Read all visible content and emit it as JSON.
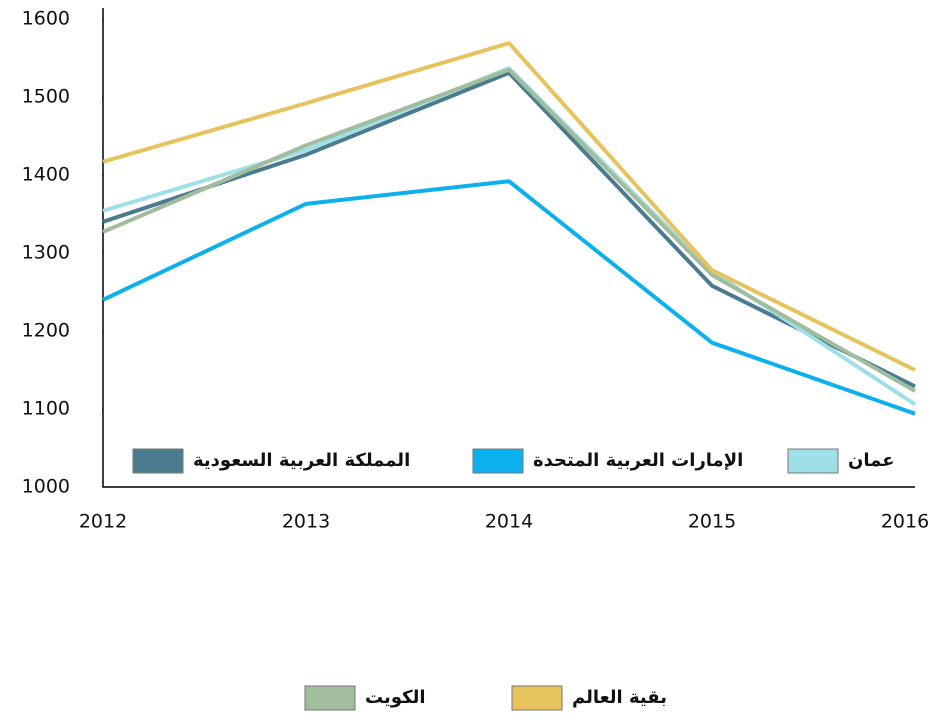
{
  "chart_data": {
    "type": "line",
    "categories": [
      "2012",
      "2013",
      "2014",
      "2015",
      "2016"
    ],
    "ylim": [
      1000,
      1600
    ],
    "yticks": [
      1000,
      1100,
      1200,
      1300,
      1400,
      1500,
      1600
    ],
    "series": [
      {
        "name": "المملكة العربية السعودية",
        "color": "#4a7b8f",
        "values": [
          1340,
          1426,
          1531,
          1258,
          1129
        ]
      },
      {
        "name": "الإمارات العربية المتحدة",
        "color": "#0cb0ec",
        "values": [
          1240,
          1363,
          1392,
          1185,
          1094
        ]
      },
      {
        "name": "عمان",
        "color": "#9fdfe8",
        "values": [
          1354,
          1432,
          1537,
          1276,
          1106
        ]
      },
      {
        "name": "الكويت",
        "color": "#a2bd9d",
        "values": [
          1327,
          1438,
          1535,
          1272,
          1123
        ]
      },
      {
        "name": "بقية العالم",
        "color": "#e6c35c",
        "values": [
          1417,
          1492,
          1569,
          1278,
          1150
        ]
      }
    ]
  }
}
